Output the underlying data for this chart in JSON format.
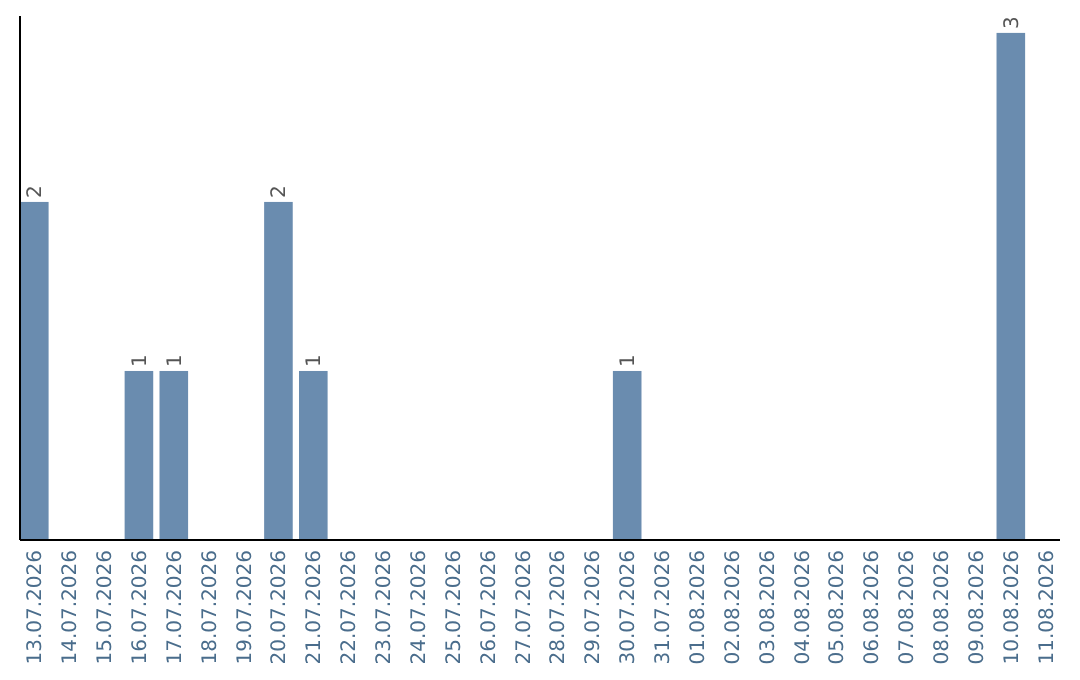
{
  "chart_data": {
    "type": "bar",
    "categories": [
      "13.07.2026",
      "14.07.2026",
      "15.07.2026",
      "16.07.2026",
      "17.07.2026",
      "18.07.2026",
      "19.07.2026",
      "20.07.2026",
      "21.07.2026",
      "22.07.2026",
      "23.07.2026",
      "24.07.2026",
      "25.07.2026",
      "26.07.2026",
      "27.07.2026",
      "28.07.2026",
      "29.07.2026",
      "30.07.2026",
      "31.07.2026",
      "01.08.2026",
      "02.08.2026",
      "03.08.2026",
      "04.08.2026",
      "05.08.2026",
      "06.08.2026",
      "07.08.2026",
      "08.08.2026",
      "09.08.2026",
      "10.08.2026",
      "11.08.2026"
    ],
    "values": [
      2,
      0,
      0,
      1,
      1,
      0,
      0,
      2,
      1,
      0,
      0,
      0,
      0,
      0,
      0,
      0,
      0,
      1,
      0,
      0,
      0,
      0,
      0,
      0,
      0,
      0,
      0,
      0,
      3,
      0
    ],
    "value_labels": [
      "2",
      null,
      null,
      "1",
      "1",
      null,
      null,
      "2",
      "1",
      null,
      null,
      null,
      null,
      null,
      null,
      null,
      null,
      "1",
      null,
      null,
      null,
      null,
      null,
      null,
      null,
      null,
      null,
      null,
      "3",
      null
    ],
    "color": "#6a8caf",
    "ylim": [
      0,
      3.1
    ],
    "tick_labels": "x"
  }
}
